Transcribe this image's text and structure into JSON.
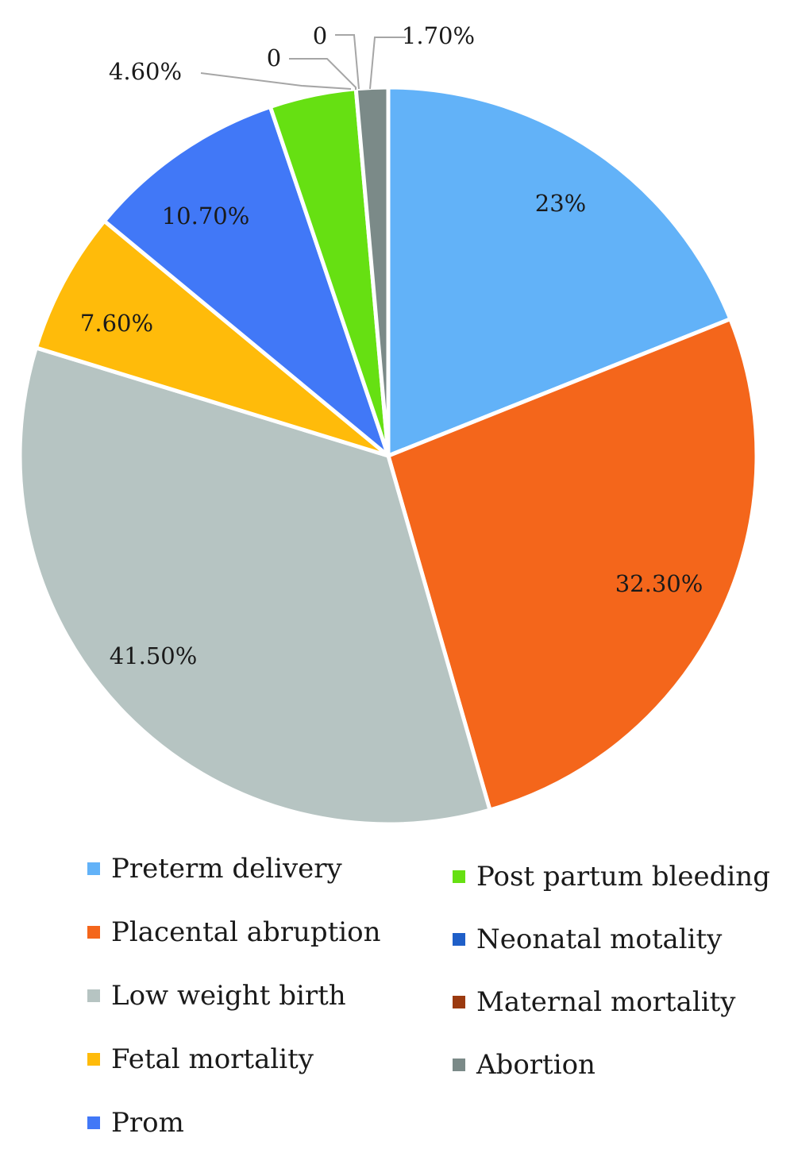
{
  "chart_data": {
    "type": "pie",
    "title": "",
    "slices": [
      {
        "name": "Preterm delivery",
        "value": 23.0,
        "label": "23%",
        "color": "#62b2f8"
      },
      {
        "name": "Placental abruption",
        "value": 32.3,
        "label": "32.30%",
        "color": "#f4661b"
      },
      {
        "name": "Low weight birth",
        "value": 41.5,
        "label": "41.50%",
        "color": "#b6c4c2"
      },
      {
        "name": "Fetal mortality",
        "value": 7.6,
        "label": "7.60%",
        "color": "#ffbb0a"
      },
      {
        "name": "Prom",
        "value": 10.7,
        "label": "10.70%",
        "color": "#4178f7"
      },
      {
        "name": "Post partum bleeding",
        "value": 4.6,
        "label": "4.60%",
        "color": "#66e012"
      },
      {
        "name": "Neonatal motality",
        "value": 0,
        "label": "0",
        "color": "#1f5fc8"
      },
      {
        "name": "Maternal mortality",
        "value": 0,
        "label": "0",
        "color": "#9b3a10"
      },
      {
        "name": "Abortion",
        "value": 1.7,
        "label": "1.70%",
        "color": "#7b8a88"
      }
    ],
    "legend_placement": "bottom",
    "start_angle": "12 o'clock",
    "direction": "clockwise"
  },
  "legend": {
    "left": [
      {
        "label": "Preterm delivery",
        "color": "#62b2f8"
      },
      {
        "label": "Placental abruption",
        "color": "#f4661b"
      },
      {
        "label": "Low weight birth",
        "color": "#b6c4c2"
      },
      {
        "label": "Fetal mortality",
        "color": "#ffbb0a"
      },
      {
        "label": "Prom",
        "color": "#4178f7"
      }
    ],
    "right": [
      {
        "label": "Post partum bleeding",
        "color": "#66e012"
      },
      {
        "label": "Neonatal motality",
        "color": "#1f5fc8"
      },
      {
        "label": "Maternal mortality",
        "color": "#9b3a10"
      },
      {
        "label": "Abortion",
        "color": "#7b8a88"
      }
    ]
  }
}
